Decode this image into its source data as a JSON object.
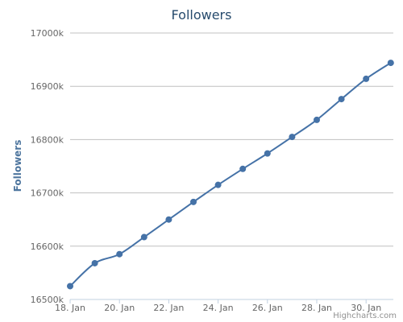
{
  "chart_data": {
    "type": "line",
    "title": "Followers",
    "xlabel": "",
    "ylabel": "Followers",
    "x": [
      "18. Jan",
      "19. Jan",
      "20. Jan",
      "21. Jan",
      "22. Jan",
      "23. Jan",
      "24. Jan",
      "25. Jan",
      "26. Jan",
      "27. Jan",
      "28. Jan",
      "29. Jan",
      "30. Jan",
      "31. Jan"
    ],
    "x_tick_labels": [
      "18. Jan",
      "20. Jan",
      "22. Jan",
      "24. Jan",
      "26. Jan",
      "28. Jan",
      "30. Jan"
    ],
    "y_tick_labels": [
      "16500k",
      "16600k",
      "16700k",
      "16800k",
      "16900k",
      "17000k"
    ],
    "ylim": [
      16500,
      17000
    ],
    "y_unit": "k",
    "grid": true,
    "legend": "none",
    "series": [
      {
        "values": [
          16525,
          16568,
          16585,
          16617,
          16650,
          16683,
          16715,
          16745,
          16774,
          16805,
          16837,
          16876,
          16914,
          16944
        ],
        "color": "#4572a7"
      }
    ]
  },
  "credits": "Highcharts.com",
  "colors": {
    "title": "#274b6d",
    "ylabel": "#4d759e",
    "grid": "#c0c0c0",
    "axis": "#c0d0e0",
    "line": "#4572a7"
  }
}
